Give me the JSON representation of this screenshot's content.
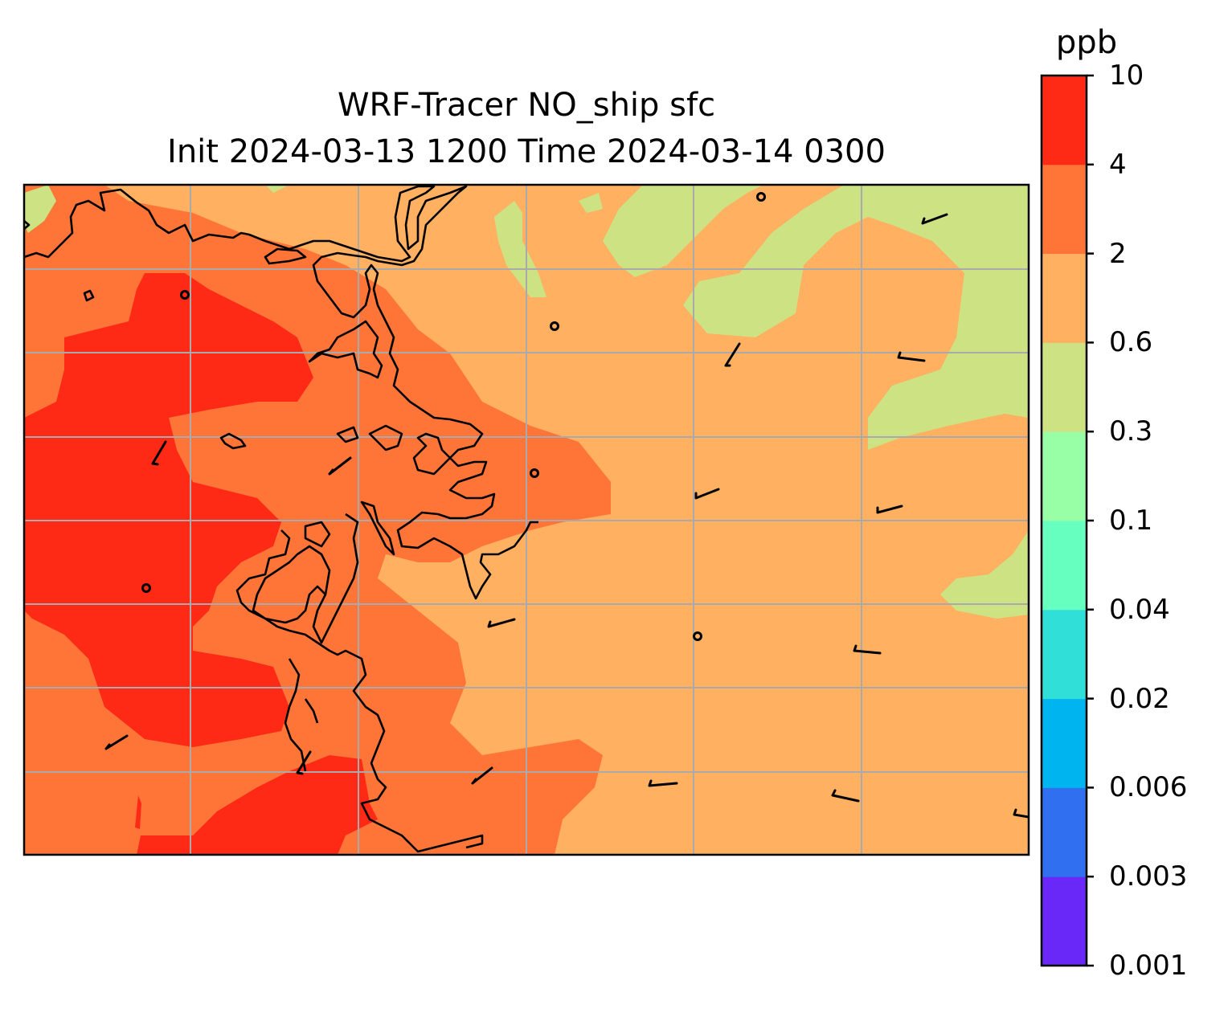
{
  "title": {
    "line1": "WRF-Tracer NO_ship sfc",
    "line2": "Init 2024-03-13 1200 Time 2024-03-14 0300"
  },
  "colorbar": {
    "unit": "ppb",
    "levels": [
      "0.001",
      "0.003",
      "0.006",
      "0.02",
      "0.04",
      "0.1",
      "0.3",
      "0.6",
      "2",
      "4",
      "10"
    ],
    "colors": [
      "#6a28f8",
      "#3070f0",
      "#00b4f0",
      "#30e0d8",
      "#66ffc0",
      "#99ffa6",
      "#cce283",
      "#ffb061",
      "#ff7538",
      "#ff2a16"
    ]
  },
  "map": {
    "field_colors": {
      "background": "#ffb061",
      "low": "#cce283",
      "mid": "#ff7538",
      "high": "#ff2a16"
    },
    "coastline_color": "#000000",
    "gridline_color": "#aaaaaa"
  },
  "chart_data": {
    "type": "heatmap",
    "title": "WRF-Tracer NO_ship sfc\nInit 2024-03-13 1200 Time 2024-03-14 0300",
    "colorbar_label": "ppb",
    "colorbar_levels": [
      0.001,
      0.003,
      0.006,
      0.02,
      0.04,
      0.1,
      0.3,
      0.6,
      2,
      4,
      10
    ],
    "dominant_ranges": [
      "0.3-0.6",
      "0.6-2",
      "2-4",
      "4-10"
    ],
    "grid": true
  }
}
